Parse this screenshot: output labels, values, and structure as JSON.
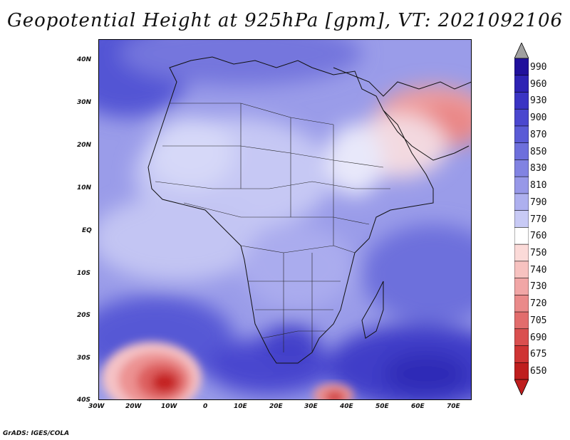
{
  "title": "Geopotential Height at 925hPa [gpm], VT: 2021092106",
  "credit": "GrADS: IGES/COLA",
  "map": {
    "lon_labels": [
      "30W",
      "20W",
      "10W",
      "0",
      "10E",
      "20E",
      "30E",
      "40E",
      "50E",
      "60E",
      "70E"
    ],
    "lat_labels": [
      "40N",
      "30N",
      "20N",
      "10N",
      "EQ",
      "10S",
      "20S",
      "30S",
      "40S"
    ]
  },
  "colorbar": {
    "labels": [
      "990",
      "960",
      "930",
      "900",
      "870",
      "850",
      "830",
      "810",
      "790",
      "770",
      "760",
      "750",
      "740",
      "730",
      "720",
      "705",
      "690",
      "675",
      "650"
    ],
    "colors": [
      "#20109c",
      "#2d22b4",
      "#3a34c4",
      "#4a47cf",
      "#5a5bd6",
      "#6d6fdc",
      "#8183e2",
      "#9798e8",
      "#aeb0ef",
      "#c8caf5",
      "#ffffff",
      "#fbdad8",
      "#f7c2c0",
      "#f1a6a6",
      "#ea8a8a",
      "#e26c6c",
      "#da4f4f",
      "#cf3434",
      "#bf1e1e"
    ]
  }
}
